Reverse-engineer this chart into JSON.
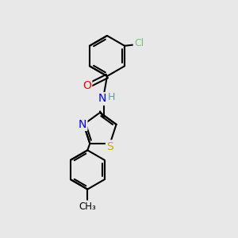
{
  "background_color": "#e8e8e8",
  "bond_color": "#000000",
  "bond_width": 1.5,
  "atom_colors": {
    "C": "#000000",
    "H": "#5f9ea0",
    "N": "#0000ff",
    "O": "#ff0000",
    "S": "#ccaa00",
    "Cl": "#7fbf7f"
  },
  "font_size": 9,
  "fig_width": 3.0,
  "fig_height": 3.0
}
